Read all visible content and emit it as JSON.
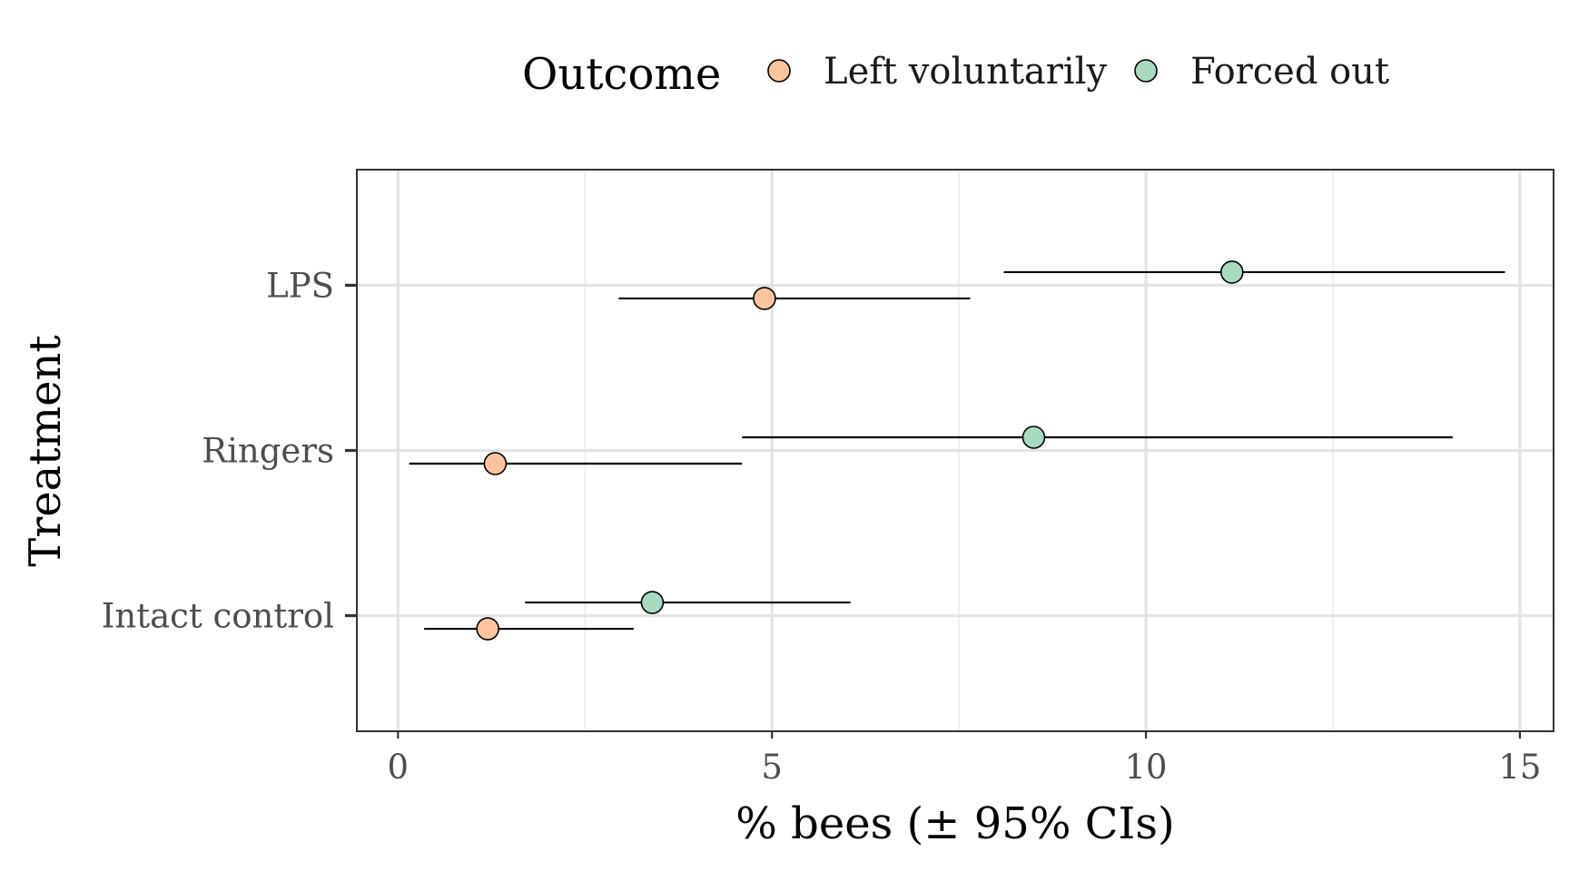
{
  "chart_data": {
    "type": "scatter",
    "subtype": "dot-and-whisker",
    "title": "",
    "xlabel": "% bees (± 95% CIs)",
    "ylabel": "Treatment",
    "xlim": [
      -0.55,
      15.45
    ],
    "x_ticks": [
      0,
      5,
      10,
      15
    ],
    "x_tick_labels": [
      "0",
      "5",
      "10",
      "15"
    ],
    "categories": [
      "Intact control",
      "Ringers",
      "LPS"
    ],
    "grid": true,
    "legend": {
      "title": "Outcome",
      "placement": "top",
      "entries": [
        "Left voluntarily",
        "Forced out"
      ]
    },
    "series": [
      {
        "name": "Left voluntarily",
        "color": "#FDC49C",
        "points": [
          {
            "category": "Intact control",
            "x": 1.2,
            "lower": 0.35,
            "upper": 3.15
          },
          {
            "category": "Ringers",
            "x": 1.3,
            "lower": 0.15,
            "upper": 4.6
          },
          {
            "category": "LPS",
            "x": 4.9,
            "lower": 2.95,
            "upper": 7.65
          }
        ]
      },
      {
        "name": "Forced out",
        "color": "#A6DBC0",
        "points": [
          {
            "category": "Intact control",
            "x": 3.4,
            "lower": 1.7,
            "upper": 6.05
          },
          {
            "category": "Ringers",
            "x": 8.5,
            "lower": 4.6,
            "upper": 14.1
          },
          {
            "category": "LPS",
            "x": 11.15,
            "lower": 8.1,
            "upper": 14.8
          }
        ]
      }
    ]
  }
}
